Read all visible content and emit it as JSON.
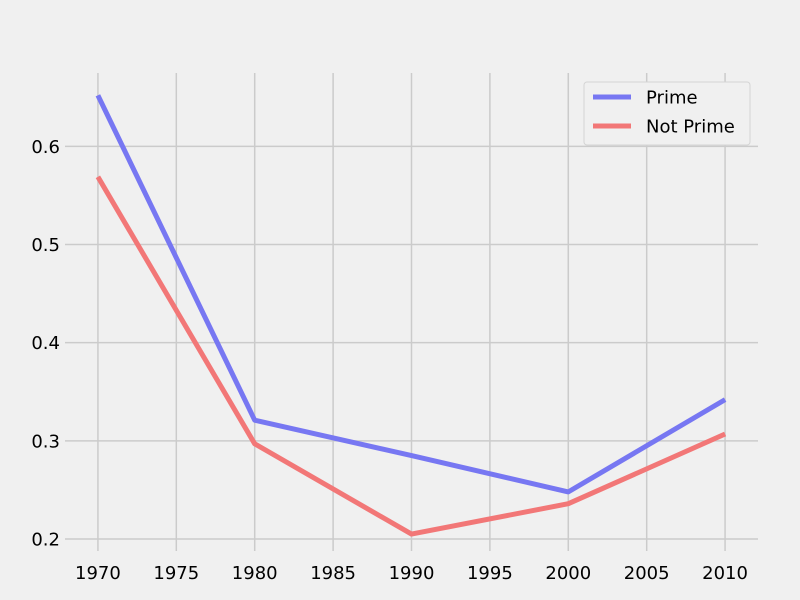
{
  "chart_data": {
    "type": "line",
    "title": "",
    "xlabel": "",
    "ylabel": "",
    "x": [
      1970,
      1980,
      1990,
      2000,
      2010
    ],
    "series": [
      {
        "name": "Prime",
        "color": "#7777f2",
        "values": [
          0.652,
          0.321,
          0.285,
          0.248,
          0.342
        ]
      },
      {
        "name": "Not Prime",
        "color": "#f27777",
        "values": [
          0.569,
          0.297,
          0.205,
          0.236,
          0.307
        ]
      }
    ],
    "xlim": [
      1967.9,
      2012.1
    ],
    "ylim": [
      0.1878,
      0.6747
    ],
    "xticks": [
      1970,
      1975,
      1980,
      1985,
      1990,
      1995,
      2000,
      2005,
      2010
    ],
    "yticks": [
      0.2,
      0.3,
      0.4,
      0.5,
      0.6
    ],
    "ytick_labels": [
      "0.2",
      "0.3",
      "0.4",
      "0.5",
      "0.6"
    ],
    "grid": true,
    "legend_position": "top-right",
    "style": "fivethirtyeight"
  }
}
